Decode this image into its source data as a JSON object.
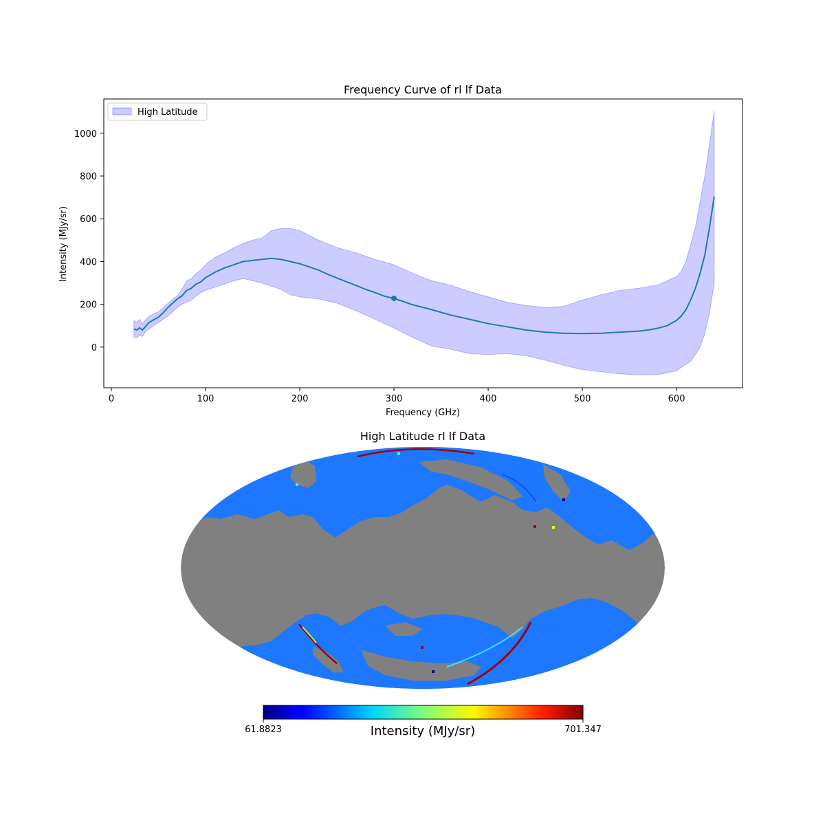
{
  "chart_data": [
    {
      "type": "line",
      "title": "Frequency Curve of rl lf Data",
      "xlabel": "Frequency (GHz)",
      "ylabel": "Intensity (MJy/sr)",
      "xlim": [
        -8,
        670
      ],
      "ylim": [
        -190,
        1160
      ],
      "xticks": [
        0,
        100,
        200,
        300,
        400,
        500,
        600
      ],
      "yticks": [
        0,
        200,
        400,
        600,
        800,
        1000
      ],
      "grid": false,
      "legend": {
        "placement": "upper-left",
        "entries": [
          "High Latitude"
        ]
      },
      "colors": {
        "line": "#1f77b4",
        "band": "#0000ff",
        "band_alpha": 0.2
      },
      "series": [
        {
          "kind": "mean",
          "x": [
            24,
            27,
            30,
            33,
            36,
            40,
            45,
            50,
            55,
            60,
            65,
            70,
            75,
            80,
            85,
            90,
            95,
            100,
            110,
            120,
            130,
            140,
            150,
            160,
            170,
            180,
            190,
            200,
            210,
            220,
            230,
            240,
            250,
            260,
            270,
            280,
            290,
            300,
            320,
            340,
            360,
            380,
            400,
            420,
            440,
            460,
            480,
            500,
            520,
            540,
            560,
            570,
            580,
            590,
            600,
            605,
            610,
            615,
            620,
            625,
            630,
            635,
            640
          ],
          "values": [
            85,
            80,
            90,
            80,
            95,
            115,
            128,
            140,
            160,
            185,
            205,
            225,
            240,
            265,
            275,
            295,
            305,
            325,
            350,
            370,
            385,
            400,
            405,
            410,
            415,
            410,
            400,
            390,
            375,
            360,
            340,
            322,
            305,
            288,
            270,
            255,
            238,
            228,
            198,
            175,
            150,
            130,
            110,
            95,
            80,
            70,
            65,
            63,
            65,
            70,
            75,
            80,
            88,
            100,
            125,
            145,
            175,
            220,
            275,
            345,
            430,
            560,
            705
          ]
        },
        {
          "kind": "band",
          "name": "High Latitude",
          "x": [
            24,
            27,
            30,
            33,
            36,
            40,
            45,
            50,
            60,
            70,
            75,
            80,
            85,
            90,
            95,
            100,
            110,
            120,
            130,
            140,
            150,
            160,
            170,
            180,
            190,
            200,
            220,
            240,
            260,
            280,
            300,
            320,
            340,
            360,
            380,
            400,
            420,
            440,
            460,
            480,
            500,
            520,
            540,
            560,
            580,
            590,
            600,
            605,
            610,
            615,
            620,
            625,
            630,
            635,
            640
          ],
          "upper": [
            125,
            115,
            130,
            110,
            125,
            145,
            155,
            165,
            205,
            240,
            270,
            310,
            320,
            345,
            360,
            385,
            420,
            440,
            465,
            485,
            500,
            510,
            545,
            555,
            555,
            545,
            500,
            465,
            440,
            410,
            385,
            345,
            310,
            290,
            260,
            235,
            210,
            195,
            185,
            190,
            220,
            245,
            265,
            275,
            290,
            310,
            330,
            355,
            400,
            480,
            560,
            680,
            800,
            950,
            1105
          ],
          "lower": [
            45,
            45,
            55,
            50,
            70,
            85,
            100,
            115,
            145,
            185,
            200,
            210,
            220,
            240,
            255,
            265,
            280,
            295,
            310,
            320,
            310,
            300,
            285,
            270,
            245,
            235,
            225,
            205,
            170,
            130,
            90,
            45,
            5,
            -10,
            -30,
            -35,
            -30,
            -40,
            -60,
            -85,
            -105,
            -115,
            -125,
            -130,
            -128,
            -120,
            -110,
            -95,
            -80,
            -65,
            -35,
            0,
            65,
            160,
            300
          ]
        }
      ],
      "annotations": [
        {
          "x": 300,
          "y": 228,
          "kind": "marker"
        }
      ]
    },
    {
      "type": "heatmap",
      "title": "High Latitude rl lf Data",
      "projection": "mollweide",
      "colormap": "jet",
      "masked_color": "#808080",
      "masked_region": "galactic plane",
      "colorbar": {
        "label": "Intensity (MJy/sr)",
        "min_label": "61.8823",
        "max_label": "701.347",
        "placement": "bottom"
      }
    }
  ]
}
